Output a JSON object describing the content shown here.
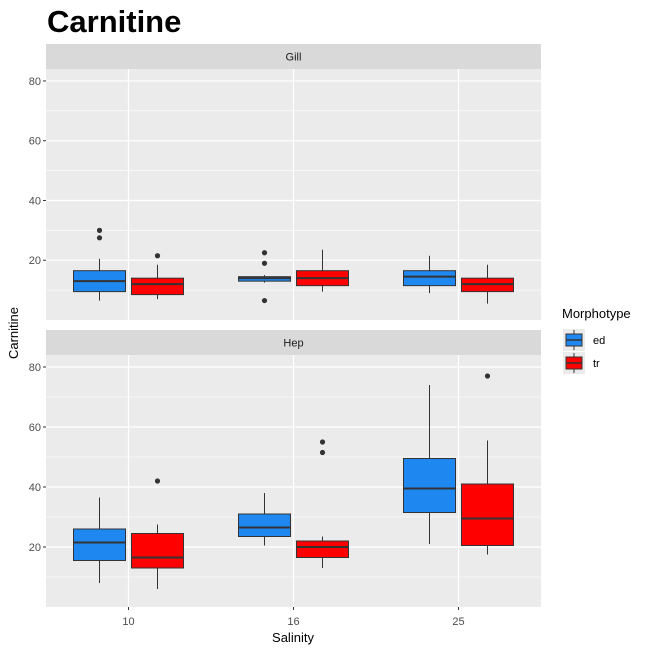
{
  "chart_data": {
    "type": "boxplot",
    "title": "Carnitine",
    "xlabel": "Salinity",
    "ylabel": "Carnitine",
    "categories": [
      "10",
      "16",
      "25"
    ],
    "yticks": [
      20,
      40,
      60,
      80
    ],
    "ylim": [
      0,
      84
    ],
    "grid": true,
    "legend": {
      "title": "Morphotype",
      "position": "right",
      "entries": [
        {
          "key": "ed",
          "label": "ed",
          "color": "#1e88f0"
        },
        {
          "key": "tr",
          "label": "tr",
          "color": "#ff0000"
        }
      ]
    },
    "panels": [
      {
        "label": "Gill",
        "boxes": [
          {
            "category": "10",
            "group": "ed",
            "min": 6.5,
            "q1": 9.5,
            "median": 13,
            "q3": 16.5,
            "max": 20.5,
            "outliers": [
              27.5,
              30
            ]
          },
          {
            "category": "10",
            "group": "tr",
            "min": 7,
            "q1": 8.5,
            "median": 12,
            "q3": 14,
            "max": 18.5,
            "outliers": [
              21.5
            ]
          },
          {
            "category": "16",
            "group": "ed",
            "min": 12.5,
            "q1": 13,
            "median": 14,
            "q3": 14.5,
            "max": 15,
            "outliers": [
              6.5,
              19,
              22.5
            ]
          },
          {
            "category": "16",
            "group": "tr",
            "min": 9.5,
            "q1": 11.5,
            "median": 14,
            "q3": 16.5,
            "max": 23.5,
            "outliers": []
          },
          {
            "category": "25",
            "group": "ed",
            "min": 9,
            "q1": 11.5,
            "median": 14.5,
            "q3": 16.5,
            "max": 21.5,
            "outliers": []
          },
          {
            "category": "25",
            "group": "tr",
            "min": 5.5,
            "q1": 9.5,
            "median": 12,
            "q3": 14,
            "max": 18.5,
            "outliers": []
          }
        ]
      },
      {
        "label": "Hep",
        "boxes": [
          {
            "category": "10",
            "group": "ed",
            "min": 8,
            "q1": 15.5,
            "median": 21.5,
            "q3": 26,
            "max": 36.5,
            "outliers": []
          },
          {
            "category": "10",
            "group": "tr",
            "min": 6,
            "q1": 13,
            "median": 16.5,
            "q3": 24.5,
            "max": 27.5,
            "outliers": [
              42
            ]
          },
          {
            "category": "16",
            "group": "ed",
            "min": 20.5,
            "q1": 23.5,
            "median": 26.5,
            "q3": 31,
            "max": 38,
            "outliers": []
          },
          {
            "category": "16",
            "group": "tr",
            "min": 13,
            "q1": 16.5,
            "median": 20,
            "q3": 22,
            "max": 23.5,
            "outliers": [
              51.5,
              55
            ]
          },
          {
            "category": "25",
            "group": "ed",
            "min": 21,
            "q1": 31.5,
            "median": 39.5,
            "q3": 49.5,
            "max": 74,
            "outliers": []
          },
          {
            "category": "25",
            "group": "tr",
            "min": 17.5,
            "q1": 20.5,
            "median": 29.5,
            "q3": 41,
            "max": 55.5,
            "outliers": [
              77
            ]
          }
        ]
      }
    ]
  }
}
